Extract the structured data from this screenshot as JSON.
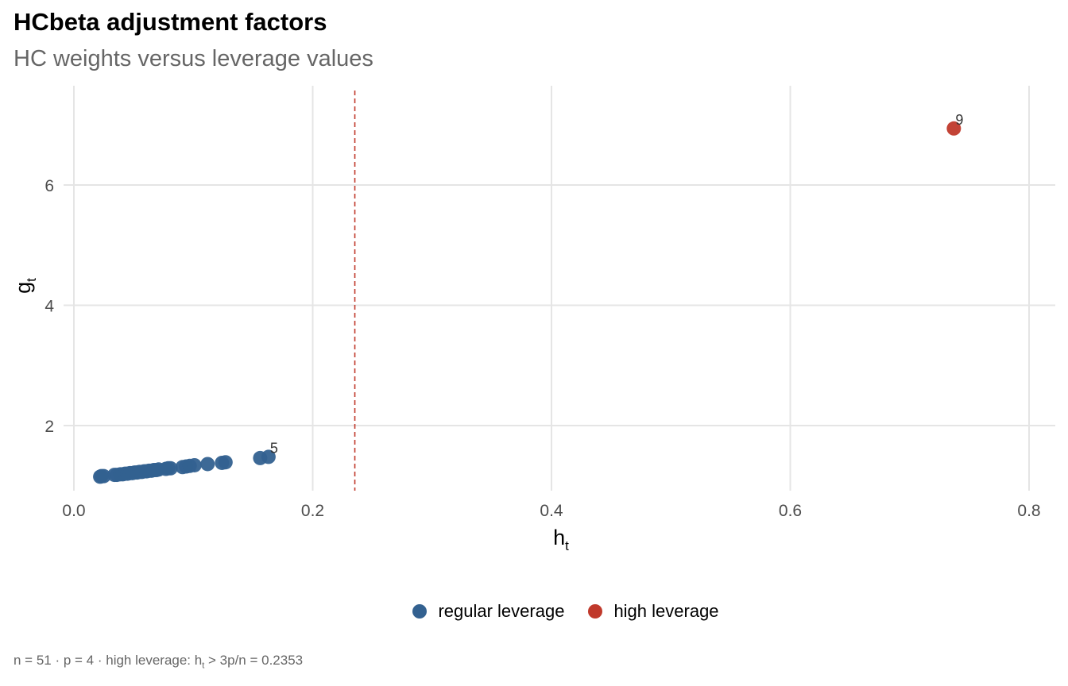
{
  "title": "HCbeta adjustment factors",
  "subtitle": "HC weights versus leverage values",
  "caption": {
    "prefix": "n = 51  ·  p = 4  ·  high leverage: h",
    "sub": "t",
    "suffix": " > 3p/n = 0.2353"
  },
  "colors": {
    "regular": "#336190",
    "high": "#C0392B",
    "threshold": "#C0392B",
    "grid": "#E5E5E5"
  },
  "legend": [
    {
      "label": "regular leverage",
      "color": "#336190"
    },
    {
      "label": "high leverage",
      "color": "#C0392B"
    }
  ],
  "chart_data": {
    "type": "scatter",
    "xlabel": "h",
    "xlabel_sub": "t",
    "ylabel": "g",
    "ylabel_sub": "t",
    "xlim": [
      0,
      0.82
    ],
    "ylim": [
      0.8,
      7.5
    ],
    "xticks": [
      0.0,
      0.2,
      0.4,
      0.6,
      0.8
    ],
    "xtick_labels": [
      "0.0",
      "0.2",
      "0.4",
      "0.6",
      "0.8"
    ],
    "yticks": [
      2,
      4,
      6
    ],
    "ytick_labels": [
      "2",
      "4",
      "6"
    ],
    "grid": true,
    "legend_position": "bottom",
    "threshold": {
      "x": 0.2353,
      "style": "dashed"
    },
    "series": [
      {
        "name": "regular leverage",
        "color": "#336190",
        "points": [
          {
            "x": 0.022,
            "y": 1.15
          },
          {
            "x": 0.023,
            "y": 1.16
          },
          {
            "x": 0.025,
            "y": 1.16
          },
          {
            "x": 0.034,
            "y": 1.18
          },
          {
            "x": 0.036,
            "y": 1.18
          },
          {
            "x": 0.039,
            "y": 1.19
          },
          {
            "x": 0.041,
            "y": 1.19
          },
          {
            "x": 0.043,
            "y": 1.2
          },
          {
            "x": 0.045,
            "y": 1.2
          },
          {
            "x": 0.047,
            "y": 1.21
          },
          {
            "x": 0.049,
            "y": 1.21
          },
          {
            "x": 0.051,
            "y": 1.22
          },
          {
            "x": 0.053,
            "y": 1.22
          },
          {
            "x": 0.055,
            "y": 1.23
          },
          {
            "x": 0.057,
            "y": 1.23
          },
          {
            "x": 0.059,
            "y": 1.24
          },
          {
            "x": 0.061,
            "y": 1.24
          },
          {
            "x": 0.063,
            "y": 1.25
          },
          {
            "x": 0.065,
            "y": 1.25
          },
          {
            "x": 0.067,
            "y": 1.26
          },
          {
            "x": 0.069,
            "y": 1.26
          },
          {
            "x": 0.071,
            "y": 1.27
          },
          {
            "x": 0.077,
            "y": 1.28
          },
          {
            "x": 0.079,
            "y": 1.29
          },
          {
            "x": 0.081,
            "y": 1.29
          },
          {
            "x": 0.091,
            "y": 1.31
          },
          {
            "x": 0.094,
            "y": 1.32
          },
          {
            "x": 0.097,
            "y": 1.33
          },
          {
            "x": 0.101,
            "y": 1.34
          },
          {
            "x": 0.112,
            "y": 1.36
          },
          {
            "x": 0.124,
            "y": 1.38
          },
          {
            "x": 0.127,
            "y": 1.39
          },
          {
            "x": 0.156,
            "y": 1.46
          },
          {
            "x": 0.163,
            "y": 1.48,
            "label": "5"
          }
        ]
      },
      {
        "name": "high leverage",
        "color": "#C0392B",
        "points": [
          {
            "x": 0.737,
            "y": 6.94,
            "label": "9"
          }
        ]
      }
    ]
  }
}
